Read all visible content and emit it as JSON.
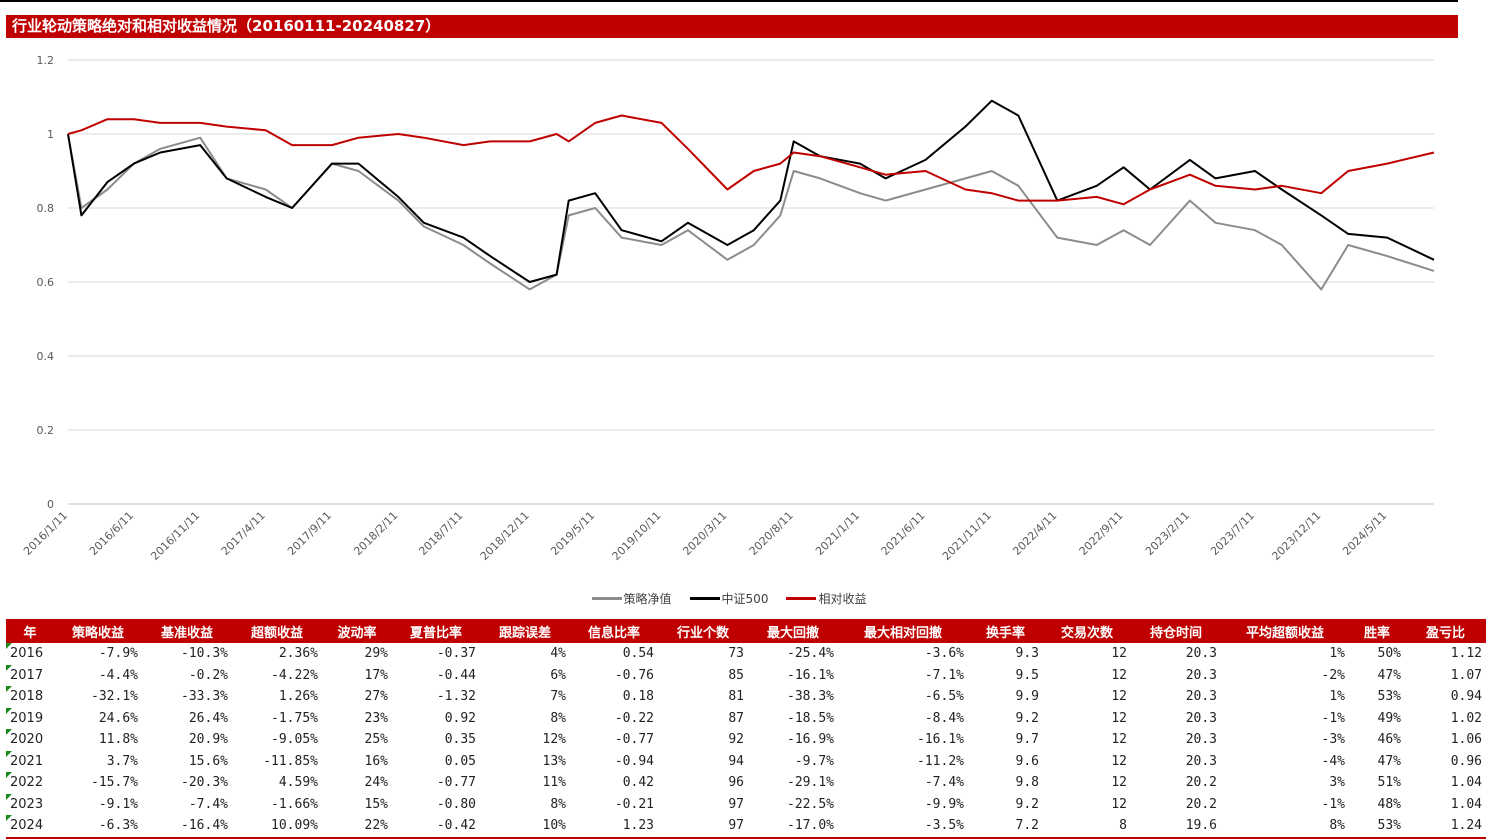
{
  "title": "行业轮动策略绝对和相对收益情况（20160111-20240827）",
  "colors": {
    "accent": "#c00000",
    "strategy": "#8c8c8c",
    "benchmark": "#000000",
    "relative": "#c00000"
  },
  "chart_data": {
    "type": "line",
    "ylim": [
      0,
      1.2
    ],
    "yticks": [
      "0",
      "0.2",
      "0.4",
      "0.6",
      "0.8",
      "1",
      "1.2"
    ],
    "x_ticks": [
      "2016/1/11",
      "2016/6/11",
      "2016/11/11",
      "2017/4/11",
      "2017/9/11",
      "2018/2/11",
      "2018/7/11",
      "2018/12/11",
      "2019/5/11",
      "2019/10/11",
      "2020/3/11",
      "2020/8/11",
      "2021/1/11",
      "2021/6/11",
      "2021/11/11",
      "2022/4/11",
      "2022/9/11",
      "2023/2/11",
      "2023/7/11",
      "2023/12/11",
      "2024/5/11"
    ],
    "x": [
      "2016/1/11",
      "2016/2/11",
      "2016/4/11",
      "2016/6/11",
      "2016/8/11",
      "2016/11/11",
      "2017/1/11",
      "2017/4/11",
      "2017/6/11",
      "2017/9/11",
      "2017/11/11",
      "2018/2/11",
      "2018/4/11",
      "2018/7/11",
      "2018/9/11",
      "2018/12/11",
      "2019/2/11",
      "2019/3/11",
      "2019/5/11",
      "2019/7/11",
      "2019/10/11",
      "2019/12/11",
      "2020/3/11",
      "2020/5/11",
      "2020/7/11",
      "2020/8/11",
      "2020/10/11",
      "2021/1/11",
      "2021/3/11",
      "2021/6/11",
      "2021/9/11",
      "2021/11/11",
      "2022/1/11",
      "2022/4/11",
      "2022/7/11",
      "2022/9/11",
      "2022/11/11",
      "2023/2/11",
      "2023/4/11",
      "2023/7/11",
      "2023/9/11",
      "2023/12/11",
      "2024/2/11",
      "2024/5/11",
      "2024/8/27"
    ],
    "series": [
      {
        "name": "策略净值",
        "color": "#8c8c8c",
        "values": [
          1.0,
          0.8,
          0.85,
          0.92,
          0.96,
          0.99,
          0.88,
          0.85,
          0.8,
          0.92,
          0.9,
          0.82,
          0.75,
          0.7,
          0.65,
          0.58,
          0.62,
          0.78,
          0.8,
          0.72,
          0.7,
          0.74,
          0.66,
          0.7,
          0.78,
          0.9,
          0.88,
          0.84,
          0.82,
          0.85,
          0.88,
          0.9,
          0.86,
          0.72,
          0.7,
          0.74,
          0.7,
          0.82,
          0.76,
          0.74,
          0.7,
          0.58,
          0.7,
          0.67,
          0.63
        ]
      },
      {
        "name": "中证500",
        "color": "#000000",
        "values": [
          1.0,
          0.78,
          0.87,
          0.92,
          0.95,
          0.97,
          0.88,
          0.83,
          0.8,
          0.92,
          0.92,
          0.83,
          0.76,
          0.72,
          0.67,
          0.6,
          0.62,
          0.82,
          0.84,
          0.74,
          0.71,
          0.76,
          0.7,
          0.74,
          0.82,
          0.98,
          0.94,
          0.92,
          0.88,
          0.93,
          1.02,
          1.09,
          1.05,
          0.82,
          0.86,
          0.91,
          0.85,
          0.93,
          0.88,
          0.9,
          0.85,
          0.78,
          0.73,
          0.72,
          0.66
        ]
      },
      {
        "name": "相对收益",
        "color": "#c00000",
        "values": [
          1.0,
          1.01,
          1.04,
          1.04,
          1.03,
          1.03,
          1.02,
          1.01,
          0.97,
          0.97,
          0.99,
          1.0,
          0.99,
          0.97,
          0.98,
          0.98,
          1.0,
          0.98,
          1.03,
          1.05,
          1.03,
          0.96,
          0.85,
          0.9,
          0.92,
          0.95,
          0.94,
          0.91,
          0.89,
          0.9,
          0.85,
          0.84,
          0.82,
          0.82,
          0.83,
          0.81,
          0.85,
          0.89,
          0.86,
          0.85,
          0.86,
          0.84,
          0.9,
          0.92,
          0.95
        ]
      }
    ]
  },
  "table": {
    "headers": [
      "年",
      "策略收益",
      "基准收益",
      "超额收益",
      "波动率",
      "夏普比率",
      "跟踪误差",
      "信息比率",
      "行业个数",
      "最大回撤",
      "最大相对回撤",
      "换手率",
      "交易次数",
      "持仓时间",
      "平均超额收益",
      "胜率",
      "盈亏比"
    ],
    "rows": [
      [
        "2016",
        "-7.9%",
        "-10.3%",
        "2.36%",
        "29%",
        "-0.37",
        "4%",
        "0.54",
        "73",
        "-25.4%",
        "-3.6%",
        "9.3",
        "12",
        "20.3",
        "1%",
        "50%",
        "1.12"
      ],
      [
        "2017",
        "-4.4%",
        "-0.2%",
        "-4.22%",
        "17%",
        "-0.44",
        "6%",
        "-0.76",
        "85",
        "-16.1%",
        "-7.1%",
        "9.5",
        "12",
        "20.3",
        "-2%",
        "47%",
        "1.07"
      ],
      [
        "2018",
        "-32.1%",
        "-33.3%",
        "1.26%",
        "27%",
        "-1.32",
        "7%",
        "0.18",
        "81",
        "-38.3%",
        "-6.5%",
        "9.9",
        "12",
        "20.3",
        "1%",
        "53%",
        "0.94"
      ],
      [
        "2019",
        "24.6%",
        "26.4%",
        "-1.75%",
        "23%",
        "0.92",
        "8%",
        "-0.22",
        "87",
        "-18.5%",
        "-8.4%",
        "9.2",
        "12",
        "20.3",
        "-1%",
        "49%",
        "1.02"
      ],
      [
        "2020",
        "11.8%",
        "20.9%",
        "-9.05%",
        "25%",
        "0.35",
        "12%",
        "-0.77",
        "92",
        "-16.9%",
        "-16.1%",
        "9.7",
        "12",
        "20.3",
        "-3%",
        "46%",
        "1.06"
      ],
      [
        "2021",
        "3.7%",
        "15.6%",
        "-11.85%",
        "16%",
        "0.05",
        "13%",
        "-0.94",
        "94",
        "-9.7%",
        "-11.2%",
        "9.6",
        "12",
        "20.3",
        "-4%",
        "47%",
        "0.96"
      ],
      [
        "2022",
        "-15.7%",
        "-20.3%",
        "4.59%",
        "24%",
        "-0.77",
        "11%",
        "0.42",
        "96",
        "-29.1%",
        "-7.4%",
        "9.8",
        "12",
        "20.2",
        "3%",
        "51%",
        "1.04"
      ],
      [
        "2023",
        "-9.1%",
        "-7.4%",
        "-1.66%",
        "15%",
        "-0.80",
        "8%",
        "-0.21",
        "97",
        "-22.5%",
        "-9.9%",
        "9.2",
        "12",
        "20.2",
        "-1%",
        "48%",
        "1.04"
      ],
      [
        "2024",
        "-6.3%",
        "-16.4%",
        "10.09%",
        "22%",
        "-0.42",
        "10%",
        "1.23",
        "97",
        "-17.0%",
        "-3.5%",
        "7.2",
        "8",
        "19.6",
        "8%",
        "53%",
        "1.24"
      ]
    ]
  }
}
